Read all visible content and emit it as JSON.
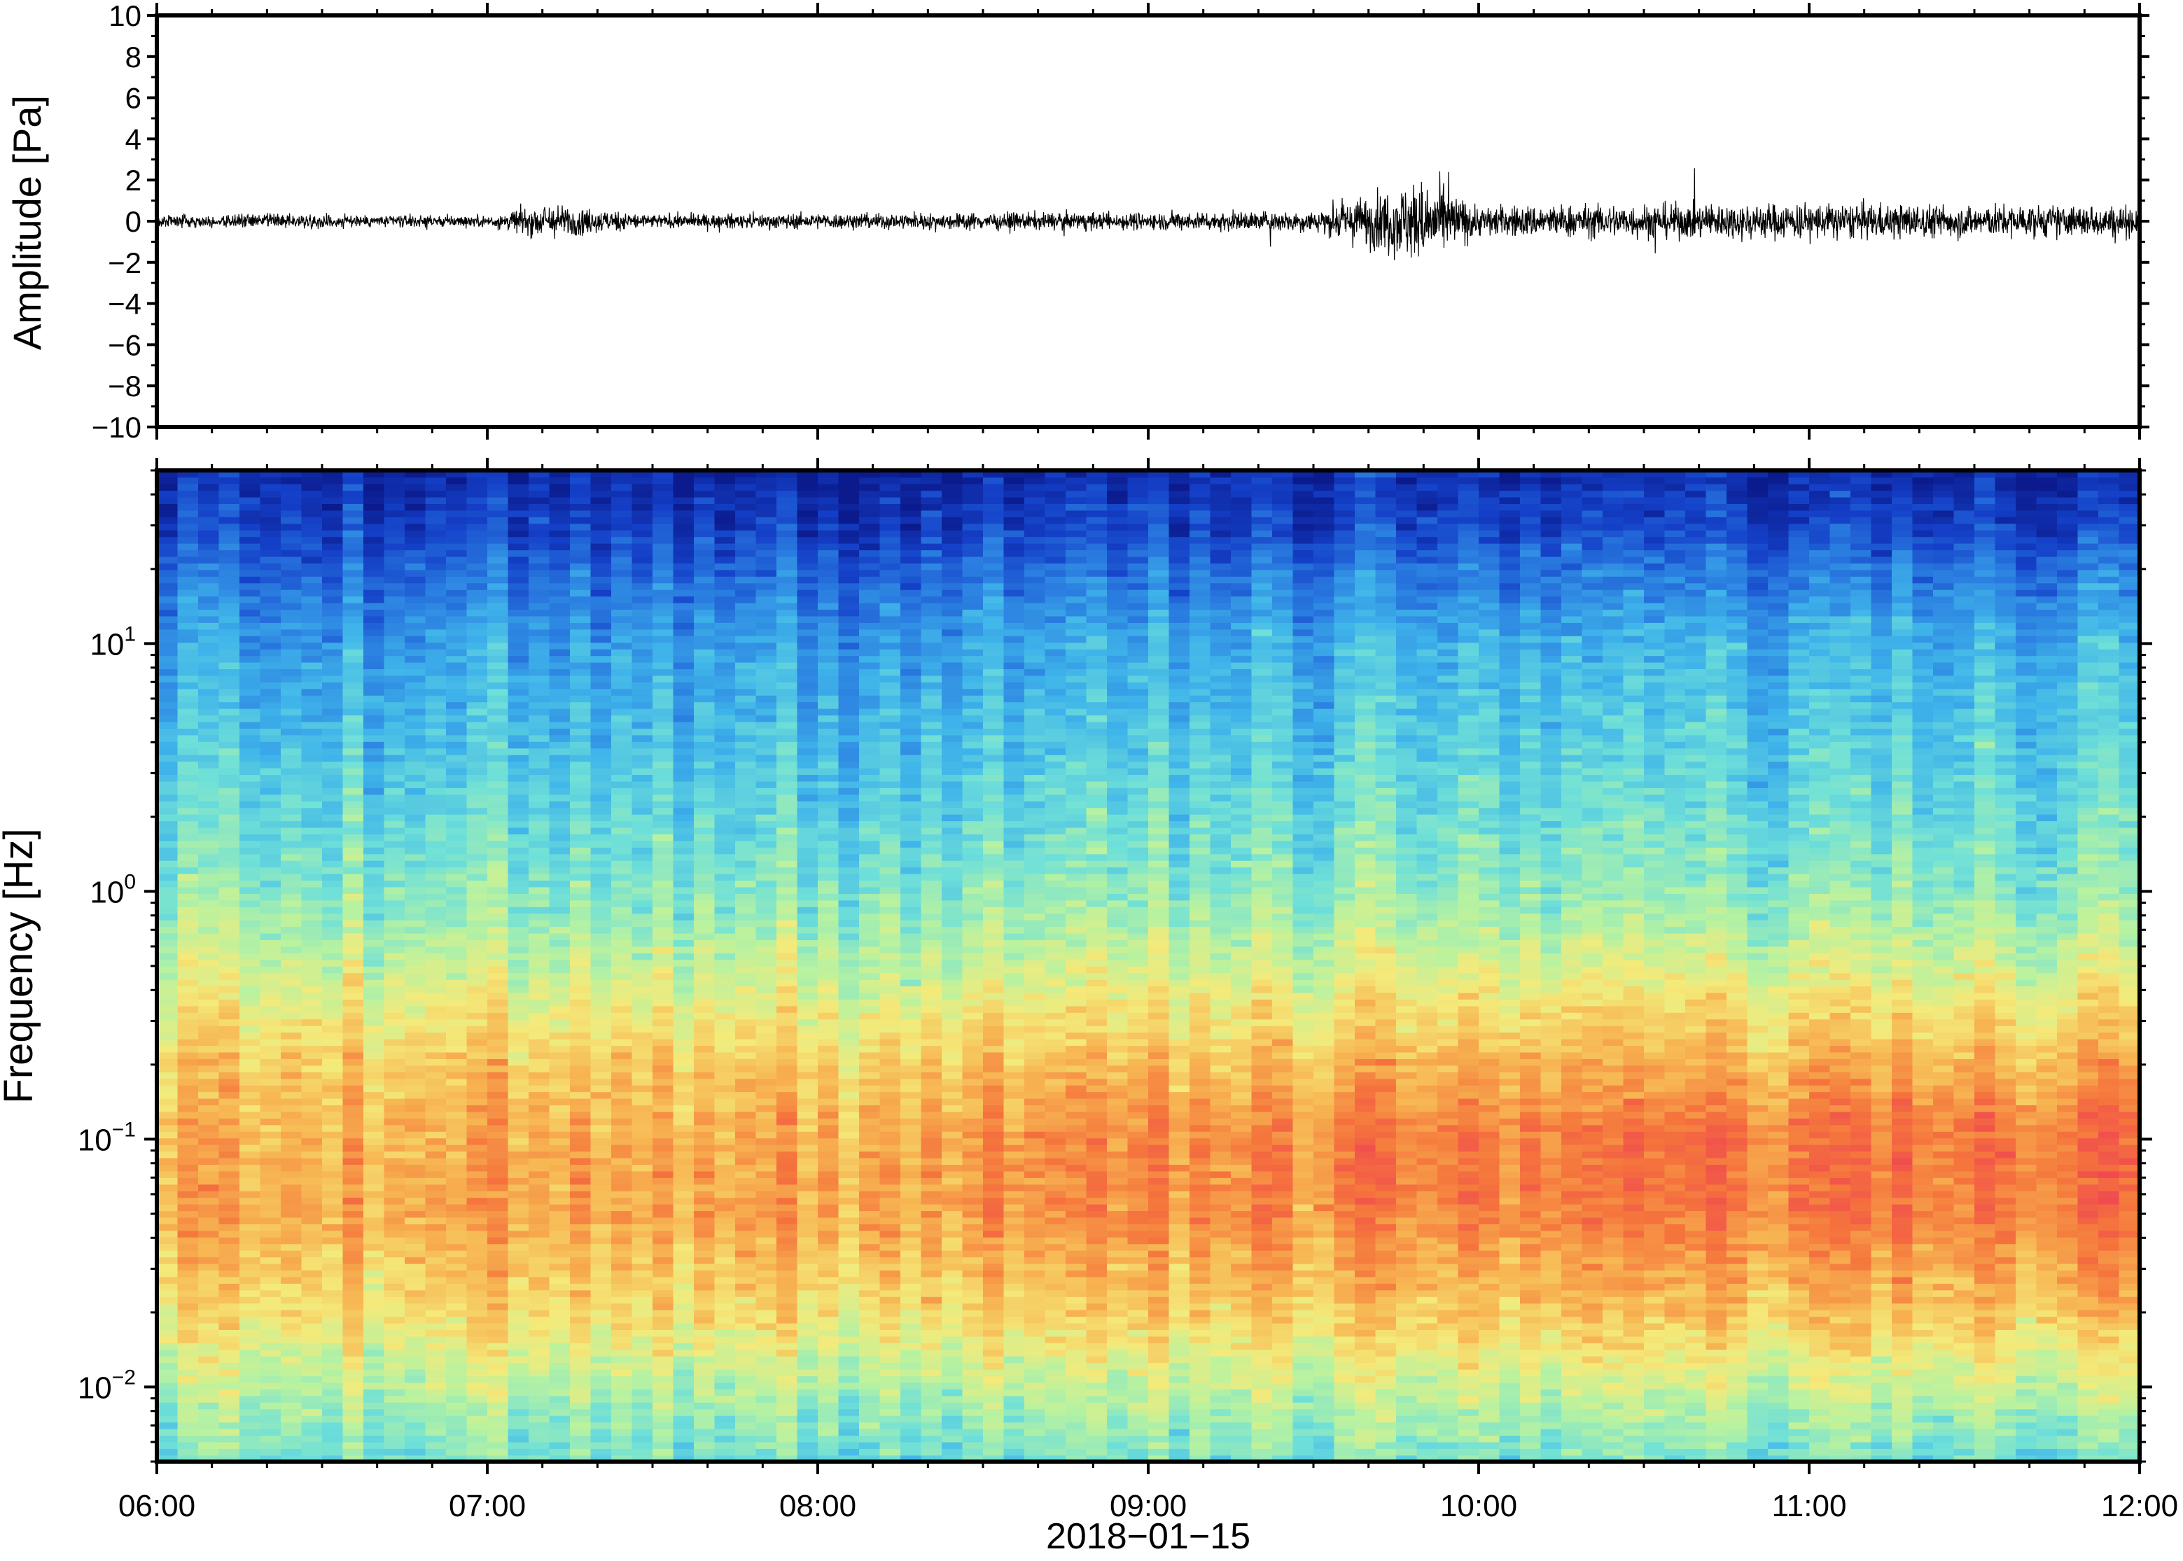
{
  "chart_data": [
    {
      "type": "line",
      "title": "",
      "xlabel": "",
      "ylabel": "Amplitude [Pa]",
      "ylim": [
        -10,
        10
      ],
      "yticks": [
        "10",
        "8",
        "6",
        "4",
        "2",
        "0",
        "−2",
        "−4",
        "−6",
        "−8",
        "−10"
      ],
      "ytick_values": [
        10,
        8,
        6,
        4,
        2,
        0,
        -2,
        -4,
        -6,
        -8,
        -10
      ],
      "xlim_hours": [
        6,
        12
      ],
      "series": [
        {
          "time_hours": [
            6.0,
            6.5,
            7.0,
            7.17,
            7.5,
            8.0,
            8.5,
            9.0,
            9.5,
            9.83,
            10.0,
            10.5,
            11.0,
            11.5,
            12.0
          ],
          "envelope_pa": [
            0.35,
            0.35,
            0.3,
            0.9,
            0.35,
            0.4,
            0.45,
            0.45,
            0.55,
            2.2,
            0.8,
            0.9,
            0.95,
            0.85,
            0.8
          ]
        }
      ]
    },
    {
      "type": "heatmap",
      "title": "",
      "ylabel": "Frequency [Hz]",
      "yscale": "log",
      "ylim": [
        0.005,
        50
      ],
      "ytick_values": [
        0.01,
        0.1,
        1,
        10
      ],
      "yticks": [
        {
          "base": "10",
          "exp": "−2"
        },
        {
          "base": "10",
          "exp": "−1"
        },
        {
          "base": "10",
          "exp": "0"
        },
        {
          "base": "10",
          "exp": "1"
        }
      ],
      "colormap": "jet",
      "colormap_stops": [
        "#0b1a8c",
        "#1440c8",
        "#2a7de0",
        "#3fb4ea",
        "#6fe0d8",
        "#b8f2a0",
        "#f4ea7a",
        "#f7b552",
        "#f5763c",
        "#f04a4f"
      ],
      "profile_vs_frequency": {
        "frequency_hz": [
          0.005,
          0.01,
          0.02,
          0.05,
          0.1,
          0.2,
          0.5,
          1,
          3,
          10,
          20,
          30,
          50
        ],
        "level_0to1_at_0600": [
          0.45,
          0.55,
          0.68,
          0.78,
          0.76,
          0.72,
          0.58,
          0.48,
          0.38,
          0.28,
          0.18,
          0.1,
          0.05
        ],
        "level_0to1_at_1200": [
          0.45,
          0.6,
          0.76,
          0.9,
          0.93,
          0.8,
          0.62,
          0.5,
          0.42,
          0.35,
          0.22,
          0.12,
          0.06
        ]
      }
    }
  ],
  "x_axis": {
    "ticks": [
      "06:00",
      "07:00",
      "08:00",
      "09:00",
      "10:00",
      "11:00",
      "12:00"
    ],
    "tick_hours": [
      6,
      7,
      8,
      9,
      10,
      11,
      12
    ],
    "date_label": "2018−01−15"
  }
}
